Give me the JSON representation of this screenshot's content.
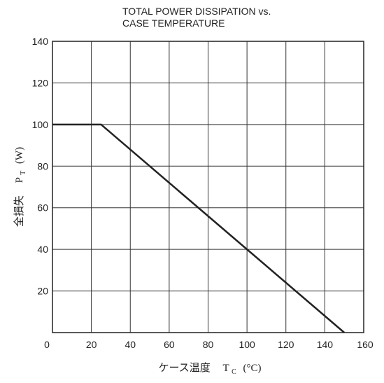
{
  "chart_data": {
    "type": "line",
    "title": "TOTAL POWER DISSIPATION vs.",
    "subtitle": "CASE TEMPERATURE",
    "xlabel": "ケース温度",
    "xlabel_symbol": "T",
    "xlabel_sub": "C",
    "xlabel_unit": "(°C)",
    "ylabel": "全損失",
    "ylabel_symbol": "P",
    "ylabel_sub": "T",
    "ylabel_unit": "(W)",
    "xlim": [
      0,
      160
    ],
    "ylim": [
      0,
      140
    ],
    "xticks": [
      0,
      20,
      40,
      60,
      80,
      100,
      120,
      140,
      160
    ],
    "yticks": [
      0,
      20,
      40,
      60,
      80,
      100,
      120,
      140
    ],
    "xtick_labels": [
      "0",
      "20",
      "40",
      "60",
      "80",
      "100",
      "120",
      "140",
      "160"
    ],
    "ytick_labels": [
      "0",
      "20",
      "40",
      "60",
      "80",
      "100",
      "120",
      "140"
    ],
    "grid": true,
    "series": [
      {
        "x": [
          0,
          25,
          150
        ],
        "y": [
          100,
          100,
          0
        ]
      }
    ]
  }
}
